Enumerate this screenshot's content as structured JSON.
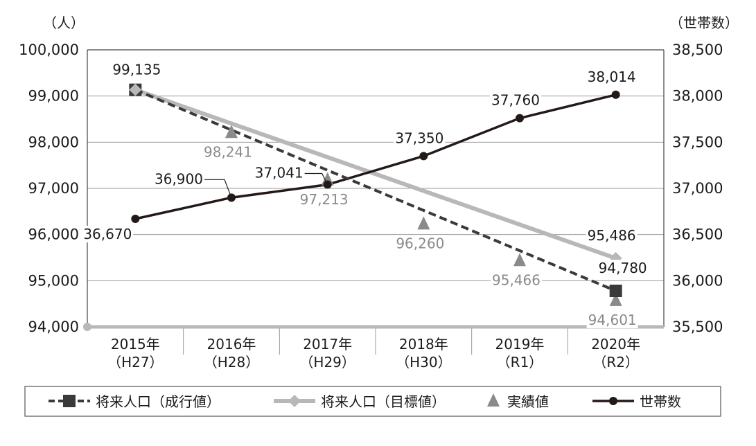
{
  "chart_data": {
    "type": "line",
    "y_left_unit": "（人）",
    "y_right_unit": "（世帯数）",
    "ylim_left": [
      94000,
      100000
    ],
    "ylim_right": [
      35500,
      38500
    ],
    "y_left_ticks": [
      "94,000",
      "95,000",
      "96,000",
      "97,000",
      "98,000",
      "99,000",
      "100,000"
    ],
    "y_right_ticks": [
      "35,500",
      "36,000",
      "36,500",
      "37,000",
      "37,500",
      "38,000",
      "38,500"
    ],
    "categories": [
      {
        "year": "2015年",
        "era": "（H27）"
      },
      {
        "year": "2016年",
        "era": "（H28）"
      },
      {
        "year": "2017年",
        "era": "（H29）"
      },
      {
        "year": "2018年",
        "era": "（H30）"
      },
      {
        "year": "2019年",
        "era": "（R1）"
      },
      {
        "year": "2020年",
        "era": "（R2）"
      }
    ],
    "grid": true,
    "legend_placement": "bottom",
    "series": [
      {
        "name": "将来人口（成行値）",
        "axis": "left",
        "style": "dashed",
        "marker": "square",
        "color": "#3a3a3a",
        "points": [
          {
            "x": 0,
            "y": 99135,
            "label": "99,135"
          },
          {
            "x": 5,
            "y": 94780,
            "label": "94,780"
          }
        ]
      },
      {
        "name": "将来人口（目標値）",
        "axis": "left",
        "style": "solid",
        "marker": "diamond",
        "color": "#b8b8b8",
        "points": [
          {
            "x": 0,
            "y": 99135,
            "label": ""
          },
          {
            "x": 5,
            "y": 95486,
            "label": "95,486"
          }
        ]
      },
      {
        "name": "実績値",
        "axis": "left",
        "style": "none",
        "marker": "triangle",
        "color": "#8a8a8a",
        "points": [
          {
            "x": 0,
            "y": 99135,
            "label": ""
          },
          {
            "x": 1,
            "y": 98241,
            "label": "98,241"
          },
          {
            "x": 2,
            "y": 97213,
            "label": "97,213"
          },
          {
            "x": 3,
            "y": 96260,
            "label": "96,260"
          },
          {
            "x": 4,
            "y": 95466,
            "label": "95,466"
          },
          {
            "x": 5,
            "y": 94601,
            "label": "94,601"
          }
        ]
      },
      {
        "name": "世帯数",
        "axis": "right",
        "style": "solid",
        "marker": "circle",
        "color": "#231a17",
        "points": [
          {
            "x": 0,
            "y": 36670,
            "label": "36,670"
          },
          {
            "x": 1,
            "y": 36900,
            "label": "36,900"
          },
          {
            "x": 2,
            "y": 37041,
            "label": "37,041"
          },
          {
            "x": 3,
            "y": 37350,
            "label": "37,350"
          },
          {
            "x": 4,
            "y": 37760,
            "label": "37,760"
          },
          {
            "x": 5,
            "y": 38014,
            "label": "38,014"
          }
        ]
      }
    ]
  }
}
